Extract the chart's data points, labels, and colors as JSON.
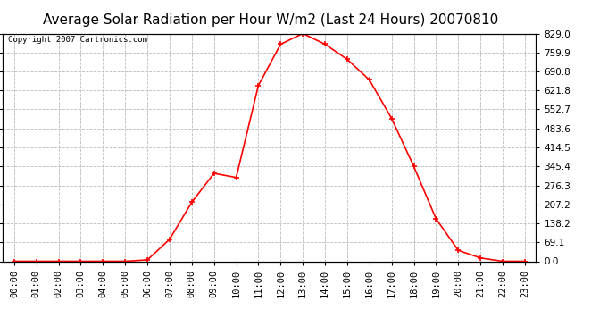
{
  "title": "Average Solar Radiation per Hour W/m2 (Last 24 Hours) 20070810",
  "copyright_text": "Copyright 2007 Cartronics.com",
  "hours": [
    "00:00",
    "01:00",
    "02:00",
    "03:00",
    "04:00",
    "05:00",
    "06:00",
    "07:00",
    "08:00",
    "09:00",
    "10:00",
    "11:00",
    "12:00",
    "13:00",
    "14:00",
    "15:00",
    "16:00",
    "17:00",
    "18:00",
    "19:00",
    "20:00",
    "21:00",
    "22:00",
    "23:00"
  ],
  "values": [
    0,
    0,
    0,
    0,
    0,
    0,
    5,
    80,
    215,
    320,
    305,
    640,
    790,
    829,
    790,
    735,
    660,
    520,
    345,
    155,
    40,
    12,
    0,
    0
  ],
  "line_color": "#ff0000",
  "marker": "+",
  "marker_size": 5,
  "background_color": "#ffffff",
  "plot_bg_color": "#ffffff",
  "grid_color": "#bbbbbb",
  "ylim_min": 0,
  "ylim_max": 829.0,
  "yticks": [
    0.0,
    69.1,
    138.2,
    207.2,
    276.3,
    345.4,
    414.5,
    483.6,
    552.7,
    621.8,
    690.8,
    759.9,
    829.0
  ],
  "title_fontsize": 11,
  "copyright_fontsize": 6.5,
  "tick_labelsize": 7.5
}
